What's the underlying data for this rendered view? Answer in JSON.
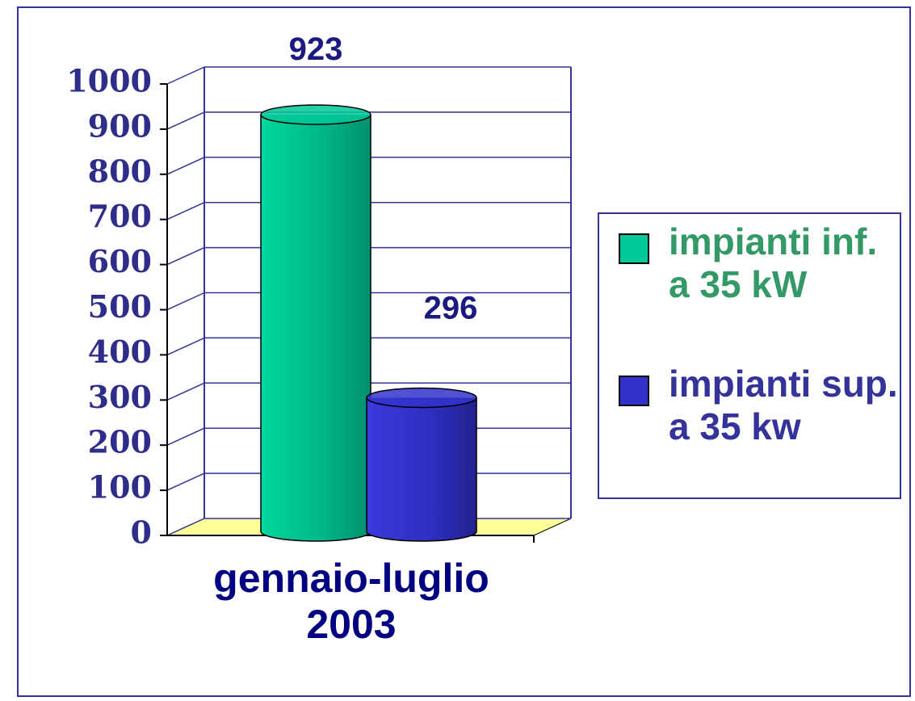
{
  "chart_data": {
    "type": "bar3d-cylinder",
    "categories": [
      "gennaio-luglio 2003"
    ],
    "series": [
      {
        "name": "impianti inf. a 35 kW",
        "color": "#00c896",
        "label_color": "#339966",
        "values": [
          923
        ]
      },
      {
        "name": "impianti sup. a 35 kw",
        "color": "#3333cc",
        "label_color": "#333399",
        "values": [
          296
        ]
      }
    ],
    "ylim": [
      0,
      1000
    ],
    "yticks": [
      0,
      100,
      200,
      300,
      400,
      500,
      600,
      700,
      800,
      900,
      1000
    ],
    "grid": true,
    "floor_color": "#ffff99",
    "legend": "right"
  }
}
